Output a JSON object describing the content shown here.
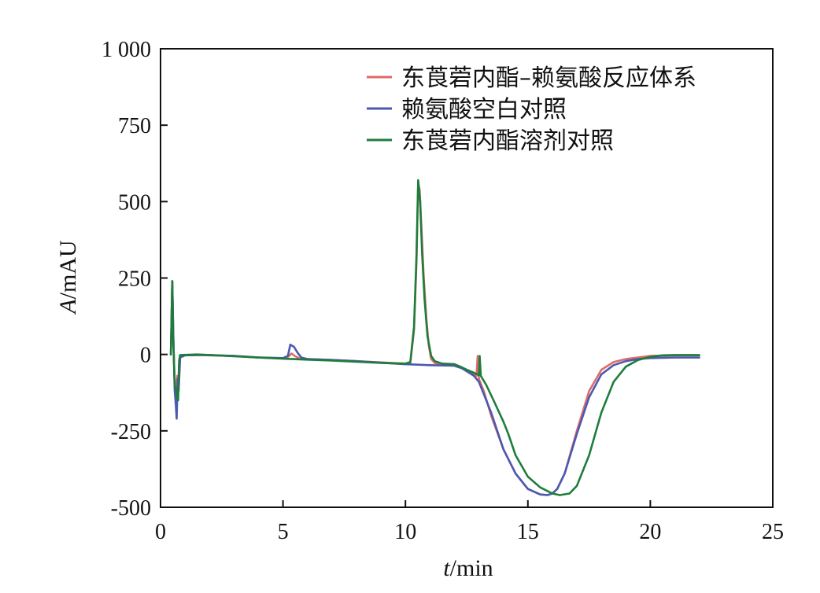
{
  "chart_data": {
    "type": "line",
    "title": "",
    "xlabel": {
      "var": "t",
      "unit": "/min"
    },
    "ylabel": {
      "var": "A",
      "unit": "/mAU"
    },
    "xlim": [
      0,
      25
    ],
    "ylim": [
      -500,
      1000
    ],
    "xticks": [
      0,
      5,
      10,
      15,
      20,
      25
    ],
    "yticks": [
      -500,
      -250,
      0,
      250,
      500,
      750,
      1000
    ],
    "xtick_labels": [
      "0",
      "5",
      "10",
      "15",
      "20",
      "25"
    ],
    "ytick_labels": [
      "-500",
      "-250",
      "0",
      "250",
      "500",
      "750",
      "1 000"
    ],
    "grid": false,
    "legend": "top-right",
    "series": [
      {
        "name": "东莨菪内酯–赖氨酸反应体系",
        "color": "#e06a6a",
        "points": [
          [
            0.42,
            0
          ],
          [
            0.48,
            240
          ],
          [
            0.52,
            60
          ],
          [
            0.58,
            -100
          ],
          [
            0.62,
            -130
          ],
          [
            0.68,
            -70
          ],
          [
            0.72,
            -120
          ],
          [
            0.76,
            -20
          ],
          [
            0.8,
            -3
          ],
          [
            1.5,
            -2
          ],
          [
            2,
            -3
          ],
          [
            3,
            -5
          ],
          [
            4,
            -10
          ],
          [
            5,
            -13
          ],
          [
            5.2,
            -8
          ],
          [
            5.35,
            3
          ],
          [
            5.5,
            -6
          ],
          [
            5.7,
            -14
          ],
          [
            6,
            -15
          ],
          [
            7,
            -18
          ],
          [
            8,
            -22
          ],
          [
            9,
            -26
          ],
          [
            10,
            -30
          ],
          [
            10.2,
            -28
          ],
          [
            10.35,
            80
          ],
          [
            10.45,
            300
          ],
          [
            10.52,
            560
          ],
          [
            10.58,
            540
          ],
          [
            10.65,
            420
          ],
          [
            10.75,
            250
          ],
          [
            10.85,
            120
          ],
          [
            10.95,
            30
          ],
          [
            11.05,
            -15
          ],
          [
            11.2,
            -28
          ],
          [
            11.5,
            -35
          ],
          [
            12,
            -37
          ],
          [
            12.3,
            -45
          ],
          [
            12.5,
            -55
          ],
          [
            12.75,
            -60
          ],
          [
            12.9,
            -70
          ],
          [
            12.95,
            -5
          ],
          [
            13.0,
            -80
          ],
          [
            13.2,
            -120
          ],
          [
            13.5,
            -200
          ],
          [
            14,
            -310
          ],
          [
            14.5,
            -390
          ],
          [
            15,
            -440
          ],
          [
            15.5,
            -458
          ],
          [
            15.8,
            -460
          ],
          [
            16,
            -455
          ],
          [
            16.2,
            -440
          ],
          [
            16.5,
            -390
          ],
          [
            17,
            -250
          ],
          [
            17.5,
            -120
          ],
          [
            18,
            -50
          ],
          [
            18.5,
            -25
          ],
          [
            19,
            -15
          ],
          [
            19.5,
            -10
          ],
          [
            20,
            -5
          ],
          [
            21,
            -3
          ],
          [
            22,
            -3
          ]
        ]
      },
      {
        "name": "赖氨酸空白对照",
        "color": "#4a5ab0",
        "points": [
          [
            0.42,
            0
          ],
          [
            0.48,
            240
          ],
          [
            0.52,
            60
          ],
          [
            0.58,
            -120
          ],
          [
            0.62,
            -160
          ],
          [
            0.66,
            -210
          ],
          [
            0.7,
            -80
          ],
          [
            0.74,
            -120
          ],
          [
            0.8,
            -10
          ],
          [
            1,
            -3
          ],
          [
            1.5,
            -2
          ],
          [
            2,
            -2
          ],
          [
            3,
            -5
          ],
          [
            4,
            -10
          ],
          [
            5,
            -12
          ],
          [
            5.2,
            -5
          ],
          [
            5.3,
            32
          ],
          [
            5.45,
            25
          ],
          [
            5.6,
            5
          ],
          [
            5.75,
            -10
          ],
          [
            6,
            -15
          ],
          [
            7,
            -18
          ],
          [
            8,
            -22
          ],
          [
            9,
            -27
          ],
          [
            10,
            -32
          ],
          [
            11,
            -35
          ],
          [
            12,
            -37
          ],
          [
            12.3,
            -45
          ],
          [
            12.5,
            -55
          ],
          [
            12.8,
            -70
          ],
          [
            13,
            -90
          ],
          [
            13.5,
            -190
          ],
          [
            14,
            -310
          ],
          [
            14.5,
            -390
          ],
          [
            15,
            -440
          ],
          [
            15.5,
            -458
          ],
          [
            15.8,
            -460
          ],
          [
            16,
            -455
          ],
          [
            16.2,
            -440
          ],
          [
            16.5,
            -390
          ],
          [
            17,
            -260
          ],
          [
            17.5,
            -140
          ],
          [
            18,
            -65
          ],
          [
            18.5,
            -35
          ],
          [
            19,
            -22
          ],
          [
            19.5,
            -15
          ],
          [
            20,
            -12
          ],
          [
            21,
            -10
          ],
          [
            22,
            -10
          ]
        ]
      },
      {
        "name": "东莨菪内酯溶剂对照",
        "color": "#1e7d3c",
        "points": [
          [
            0.42,
            0
          ],
          [
            0.48,
            240
          ],
          [
            0.52,
            50
          ],
          [
            0.58,
            -100
          ],
          [
            0.62,
            -110
          ],
          [
            0.68,
            -140
          ],
          [
            0.72,
            -150
          ],
          [
            0.76,
            -20
          ],
          [
            0.8,
            -2
          ],
          [
            1.5,
            0
          ],
          [
            2,
            -2
          ],
          [
            3,
            -6
          ],
          [
            4,
            -10
          ],
          [
            5,
            -14
          ],
          [
            6,
            -17
          ],
          [
            7,
            -20
          ],
          [
            8,
            -24
          ],
          [
            9,
            -28
          ],
          [
            10,
            -30
          ],
          [
            10.2,
            -25
          ],
          [
            10.35,
            90
          ],
          [
            10.45,
            320
          ],
          [
            10.52,
            570
          ],
          [
            10.6,
            500
          ],
          [
            10.68,
            330
          ],
          [
            10.78,
            180
          ],
          [
            10.9,
            60
          ],
          [
            11.05,
            -5
          ],
          [
            11.2,
            -22
          ],
          [
            11.5,
            -30
          ],
          [
            12,
            -32
          ],
          [
            12.3,
            -42
          ],
          [
            12.5,
            -50
          ],
          [
            12.8,
            -60
          ],
          [
            13,
            -68
          ],
          [
            13.03,
            -5
          ],
          [
            13.08,
            -70
          ],
          [
            13.3,
            -100
          ],
          [
            13.6,
            -150
          ],
          [
            14,
            -220
          ],
          [
            14.1,
            -240
          ],
          [
            14.2,
            -260
          ],
          [
            14.5,
            -330
          ],
          [
            15,
            -400
          ],
          [
            15.5,
            -435
          ],
          [
            16,
            -455
          ],
          [
            16.3,
            -460
          ],
          [
            16.7,
            -455
          ],
          [
            17,
            -430
          ],
          [
            17.5,
            -330
          ],
          [
            18,
            -190
          ],
          [
            18.5,
            -90
          ],
          [
            19,
            -40
          ],
          [
            19.5,
            -18
          ],
          [
            20,
            -8
          ],
          [
            20.5,
            -3
          ],
          [
            21,
            -2
          ],
          [
            22,
            -2
          ]
        ]
      }
    ]
  }
}
